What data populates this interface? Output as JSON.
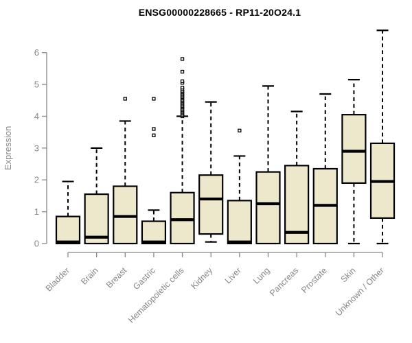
{
  "chart_data": {
    "type": "boxplot",
    "title": "ENSG00000228665 - RP11-20O24.1",
    "ylabel": "Expression",
    "xlabel": "",
    "ylim": [
      0,
      6
    ],
    "y_ticks": [
      0,
      1,
      2,
      3,
      4,
      5,
      6
    ],
    "grid": false,
    "legend": "none",
    "categories": [
      "Bladder",
      "Brain",
      "Breast",
      "Gastric",
      "Hematopoietic cells",
      "Kidney",
      "Liver",
      "Lung",
      "Pancreas",
      "Prostate",
      "Skin",
      "Unknown / Other"
    ],
    "boxes": [
      {
        "category": "Bladder",
        "whisker_low": 0,
        "q1": 0,
        "median": 0.05,
        "q3": 0.85,
        "whisker_high": 1.95,
        "outliers": []
      },
      {
        "category": "Brain",
        "whisker_low": 0,
        "q1": 0,
        "median": 0.2,
        "q3": 1.55,
        "whisker_high": 3.0,
        "outliers": []
      },
      {
        "category": "Breast",
        "whisker_low": 0,
        "q1": 0,
        "median": 0.85,
        "q3": 1.8,
        "whisker_high": 3.85,
        "outliers": [
          4.55
        ]
      },
      {
        "category": "Gastric",
        "whisker_low": 0,
        "q1": 0,
        "median": 0.05,
        "q3": 0.7,
        "whisker_high": 1.05,
        "outliers": [
          3.4,
          3.6,
          4.55
        ]
      },
      {
        "category": "Hematopoietic cells",
        "whisker_low": 0,
        "q1": 0,
        "median": 0.75,
        "q3": 1.6,
        "whisker_high": 4.0,
        "outliers": [
          4.0,
          4.04,
          4.08,
          4.12,
          4.16,
          4.2,
          4.24,
          4.28,
          4.32,
          4.36,
          4.4,
          4.44,
          4.48,
          4.52,
          4.56,
          4.6,
          4.64,
          4.68,
          4.72,
          4.76,
          4.8,
          4.85,
          4.9,
          5.05,
          5.1,
          5.4,
          5.8
        ]
      },
      {
        "category": "Kidney",
        "whisker_low": 0.05,
        "q1": 0.3,
        "median": 1.4,
        "q3": 2.15,
        "whisker_high": 4.45,
        "outliers": []
      },
      {
        "category": "Liver",
        "whisker_low": 0,
        "q1": 0,
        "median": 0.05,
        "q3": 1.35,
        "whisker_high": 2.75,
        "outliers": [
          3.55
        ]
      },
      {
        "category": "Lung",
        "whisker_low": 0,
        "q1": 0,
        "median": 1.25,
        "q3": 2.25,
        "whisker_high": 4.95,
        "outliers": []
      },
      {
        "category": "Pancreas",
        "whisker_low": 0,
        "q1": 0,
        "median": 0.35,
        "q3": 2.45,
        "whisker_high": 4.15,
        "outliers": []
      },
      {
        "category": "Prostate",
        "whisker_low": 0,
        "q1": 0,
        "median": 1.2,
        "q3": 2.35,
        "whisker_high": 4.7,
        "outliers": []
      },
      {
        "category": "Skin",
        "whisker_low": 0,
        "q1": 1.9,
        "median": 2.9,
        "q3": 4.05,
        "whisker_high": 5.15,
        "outliers": []
      },
      {
        "category": "Unknown / Other",
        "whisker_low": 0,
        "q1": 0.8,
        "median": 1.95,
        "q3": 3.15,
        "whisker_high": 6.7,
        "outliers": []
      }
    ],
    "colors": {
      "box_fill": "#EDE8CB",
      "box_border": "#000000",
      "median": "#000000",
      "whisker": "#000000",
      "outlier": "#000000",
      "axis": "#878787",
      "tick_label": "#878787",
      "axis_label": "#878787",
      "title": "#000000",
      "background": "#ffffff"
    }
  }
}
